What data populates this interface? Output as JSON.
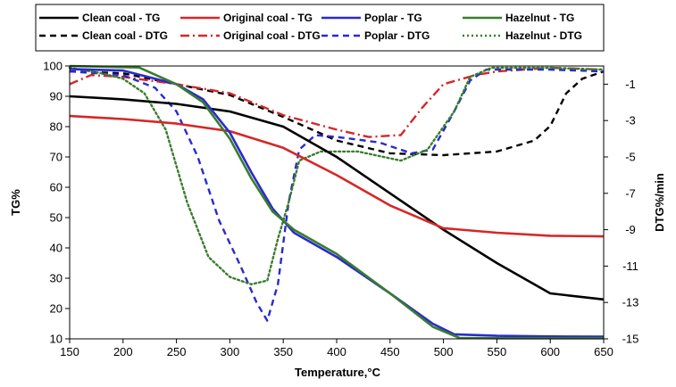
{
  "chart_data": {
    "type": "line",
    "title": "",
    "xlabel": "Temperature,°C",
    "ylabel": "TG%",
    "y2label": "DTG%/min",
    "xlim": [
      150,
      650
    ],
    "ylim": [
      10,
      100
    ],
    "y2lim": [
      -15,
      0
    ],
    "x_ticks": [
      150,
      200,
      250,
      300,
      350,
      400,
      450,
      500,
      550,
      600,
      650
    ],
    "y_ticks": [
      10,
      20,
      30,
      40,
      50,
      60,
      70,
      80,
      90,
      100
    ],
    "y2_ticks": [
      -1,
      -3,
      -5,
      -7,
      -9,
      -11,
      -13,
      -15
    ],
    "grid": false,
    "legend_position": "top",
    "series": [
      {
        "name": "Clean coal - TG",
        "axis": "left",
        "color": "#000000",
        "dash": "solid",
        "points": [
          [
            150,
            90
          ],
          [
            200,
            89
          ],
          [
            250,
            87.5
          ],
          [
            300,
            85
          ],
          [
            350,
            80
          ],
          [
            400,
            70
          ],
          [
            450,
            58
          ],
          [
            500,
            46
          ],
          [
            550,
            35
          ],
          [
            600,
            25
          ],
          [
            650,
            23
          ]
        ]
      },
      {
        "name": "Original coal - TG",
        "axis": "left",
        "color": "#d62728",
        "dash": "solid",
        "points": [
          [
            150,
            83.5
          ],
          [
            200,
            82.5
          ],
          [
            250,
            81
          ],
          [
            300,
            78.5
          ],
          [
            350,
            73
          ],
          [
            400,
            64
          ],
          [
            450,
            54
          ],
          [
            500,
            46.5
          ],
          [
            550,
            45
          ],
          [
            600,
            44
          ],
          [
            650,
            43.8
          ]
        ]
      },
      {
        "name": "Poplar - TG",
        "axis": "left",
        "color": "#2a2ad0",
        "dash": "solid",
        "points": [
          [
            150,
            99
          ],
          [
            200,
            98.5
          ],
          [
            250,
            94
          ],
          [
            275,
            89
          ],
          [
            300,
            78
          ],
          [
            320,
            65
          ],
          [
            340,
            53
          ],
          [
            360,
            45
          ],
          [
            400,
            37
          ],
          [
            450,
            25
          ],
          [
            490,
            15
          ],
          [
            510,
            11.5
          ],
          [
            550,
            11
          ],
          [
            600,
            10.8
          ],
          [
            650,
            10.7
          ]
        ]
      },
      {
        "name": "Hazelnut - TG",
        "axis": "left",
        "color": "#3a7d2c",
        "dash": "solid",
        "points": [
          [
            150,
            100
          ],
          [
            215,
            99.5
          ],
          [
            250,
            94
          ],
          [
            275,
            88
          ],
          [
            300,
            76
          ],
          [
            320,
            63
          ],
          [
            340,
            52
          ],
          [
            360,
            46
          ],
          [
            400,
            38
          ],
          [
            450,
            25
          ],
          [
            490,
            14
          ],
          [
            515,
            10.3
          ],
          [
            550,
            10.2
          ],
          [
            600,
            10.2
          ],
          [
            650,
            10.2
          ]
        ]
      },
      {
        "name": "Clean coal - DTG",
        "axis": "right",
        "color": "#000000",
        "dash": "dash",
        "points": [
          [
            150,
            -0.3
          ],
          [
            200,
            -0.4
          ],
          [
            250,
            -1
          ],
          [
            300,
            -1.6
          ],
          [
            350,
            -2.8
          ],
          [
            400,
            -4.1
          ],
          [
            450,
            -4.8
          ],
          [
            500,
            -4.9
          ],
          [
            550,
            -4.7
          ],
          [
            585,
            -4.1
          ],
          [
            600,
            -3.3
          ],
          [
            615,
            -1.5
          ],
          [
            630,
            -0.7
          ],
          [
            650,
            -0.3
          ]
        ]
      },
      {
        "name": "Original coal - DTG",
        "axis": "right",
        "color": "#d62728",
        "dash": "dashdot",
        "points": [
          [
            150,
            -1
          ],
          [
            170,
            -0.5
          ],
          [
            200,
            -0.6
          ],
          [
            250,
            -1
          ],
          [
            300,
            -1.5
          ],
          [
            350,
            -2.7
          ],
          [
            400,
            -3.5
          ],
          [
            430,
            -3.9
          ],
          [
            460,
            -3.8
          ],
          [
            480,
            -2.3
          ],
          [
            500,
            -1
          ],
          [
            530,
            -0.5
          ],
          [
            550,
            -0.3
          ],
          [
            600,
            -0.1
          ],
          [
            650,
            -0.2
          ]
        ]
      },
      {
        "name": "Poplar - DTG",
        "axis": "right",
        "color": "#2a2ad0",
        "dash": "dash",
        "points": [
          [
            150,
            -0.3
          ],
          [
            200,
            -0.5
          ],
          [
            230,
            -1.2
          ],
          [
            250,
            -2.5
          ],
          [
            270,
            -5
          ],
          [
            290,
            -8.5
          ],
          [
            310,
            -11
          ],
          [
            325,
            -13
          ],
          [
            335,
            -14
          ],
          [
            345,
            -12
          ],
          [
            355,
            -7.5
          ],
          [
            365,
            -4.6
          ],
          [
            380,
            -3.8
          ],
          [
            400,
            -3.9
          ],
          [
            440,
            -4.2
          ],
          [
            470,
            -4.8
          ],
          [
            490,
            -4.6
          ],
          [
            510,
            -2.5
          ],
          [
            525,
            -0.8
          ],
          [
            540,
            -0.2
          ],
          [
            600,
            -0.2
          ],
          [
            650,
            -0.3
          ]
        ]
      },
      {
        "name": "Hazelnut - DTG",
        "axis": "right",
        "color": "#3a7d2c",
        "dash": "dot",
        "points": [
          [
            150,
            -0.1
          ],
          [
            180,
            -0.4
          ],
          [
            200,
            -0.7
          ],
          [
            220,
            -1.5
          ],
          [
            240,
            -3.5
          ],
          [
            260,
            -7.5
          ],
          [
            280,
            -10.5
          ],
          [
            300,
            -11.6
          ],
          [
            320,
            -12
          ],
          [
            335,
            -11.8
          ],
          [
            345,
            -9.5
          ],
          [
            355,
            -7.5
          ],
          [
            365,
            -5.2
          ],
          [
            385,
            -4.7
          ],
          [
            420,
            -4.7
          ],
          [
            460,
            -5.2
          ],
          [
            485,
            -4.6
          ],
          [
            510,
            -2.5
          ],
          [
            525,
            -0.6
          ],
          [
            545,
            -0.1
          ],
          [
            600,
            -0.1
          ],
          [
            650,
            -0.2
          ]
        ]
      }
    ]
  }
}
